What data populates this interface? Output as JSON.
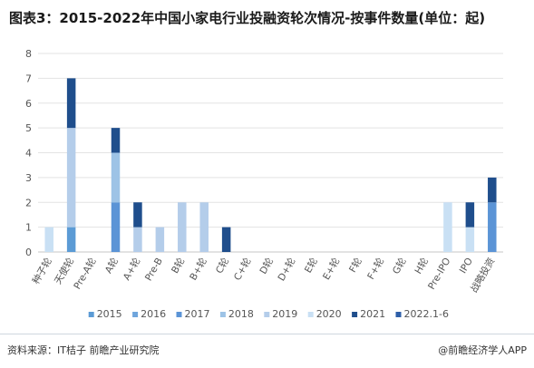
{
  "title": "图表3：2015-2022年中国小家电行业投融资轮次情况-按事件数量(单位：起)",
  "source": "资料来源：IT桔子 前瞻产业研究院",
  "brand": "@前瞻经济学人APP",
  "chart_data": {
    "type": "bar",
    "stacked": true,
    "categories": [
      "种子轮",
      "天使轮",
      "Pre-A轮",
      "A轮",
      "A+轮",
      "Pre-B",
      "B轮",
      "B+轮",
      "C轮",
      "C+轮",
      "D轮",
      "D+轮",
      "E轮",
      "E+轮",
      "F轮",
      "F+轮",
      "G轮",
      "H轮",
      "Pre-IPO",
      "IPO",
      "战略投资"
    ],
    "ylim": [
      0,
      8
    ],
    "yticks": [
      "0",
      "1",
      "2",
      "3",
      "4",
      "5",
      "6",
      "7",
      "8"
    ],
    "grid": true,
    "legend_position": "bottom",
    "series": [
      {
        "name": "2015",
        "color": "#5b9bd5",
        "values": [
          0,
          1,
          0,
          0,
          0,
          0,
          0,
          0,
          0,
          0,
          0,
          0,
          0,
          0,
          0,
          0,
          0,
          0,
          0,
          0,
          0
        ]
      },
      {
        "name": "2016",
        "color": "#6fa5dc",
        "values": [
          0,
          0,
          0,
          0,
          0,
          0,
          0,
          0,
          0,
          0,
          0,
          0,
          0,
          0,
          0,
          0,
          0,
          0,
          0,
          0,
          0
        ]
      },
      {
        "name": "2017",
        "color": "#5b94d6",
        "values": [
          0,
          0,
          0,
          2,
          0,
          0,
          0,
          0,
          0,
          0,
          0,
          0,
          0,
          0,
          0,
          0,
          0,
          0,
          0,
          0,
          2
        ]
      },
      {
        "name": "2018",
        "color": "#9dc3e6",
        "values": [
          0,
          0,
          0,
          2,
          0,
          0,
          0,
          0,
          0,
          0,
          0,
          0,
          0,
          0,
          0,
          0,
          0,
          0,
          0,
          0,
          0
        ]
      },
      {
        "name": "2019",
        "color": "#b4cdea",
        "values": [
          0,
          4,
          0,
          0,
          1,
          1,
          2,
          2,
          0,
          0,
          0,
          0,
          0,
          0,
          0,
          0,
          0,
          0,
          0,
          0,
          0
        ]
      },
      {
        "name": "2020",
        "color": "#c9e0f4",
        "values": [
          1,
          0,
          0,
          0,
          0,
          0,
          0,
          0,
          0,
          0,
          0,
          0,
          0,
          0,
          0,
          0,
          0,
          0,
          2,
          1,
          0
        ]
      },
      {
        "name": "2021",
        "color": "#1f4e8c",
        "values": [
          0,
          2,
          0,
          1,
          1,
          0,
          0,
          0,
          1,
          0,
          0,
          0,
          0,
          0,
          0,
          0,
          0,
          0,
          0,
          1,
          1
        ]
      },
      {
        "name": "2022.1-6",
        "color": "#2e5fa8",
        "values": [
          0,
          0,
          0,
          0,
          0,
          0,
          0,
          0,
          0,
          0,
          0,
          0,
          0,
          0,
          0,
          0,
          0,
          0,
          0,
          0,
          0
        ]
      }
    ]
  }
}
